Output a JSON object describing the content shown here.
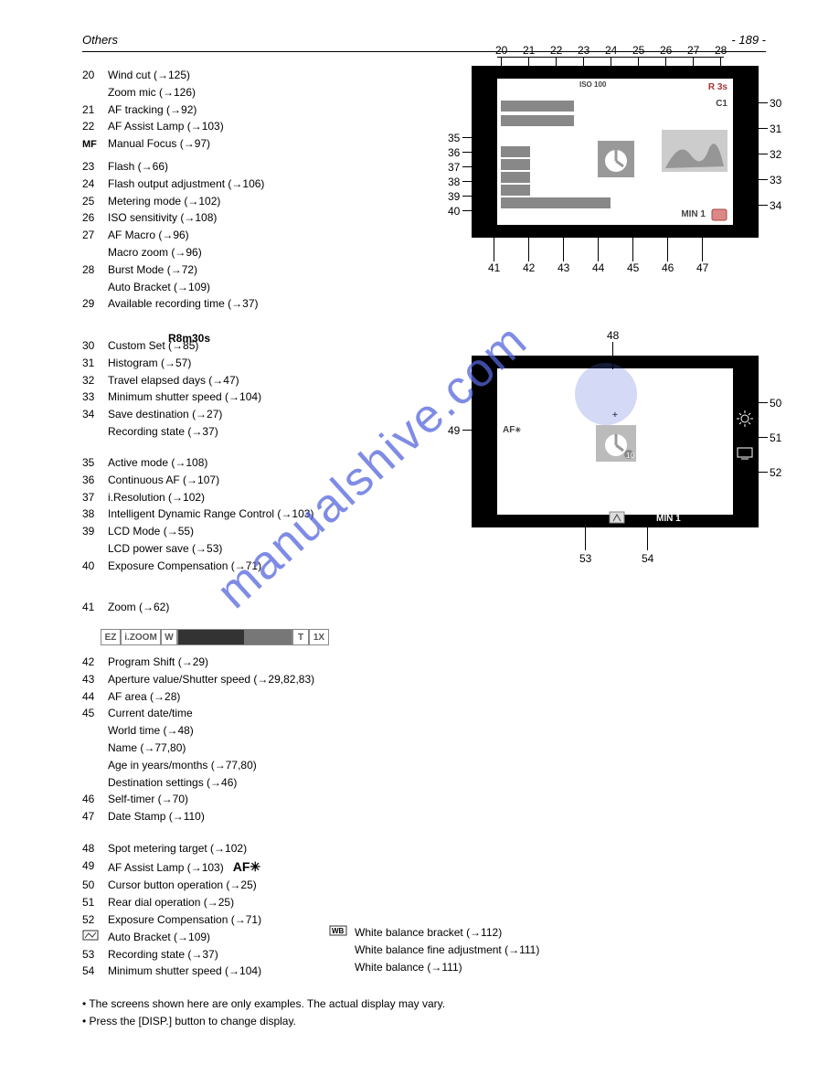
{
  "page_number_text": "- 189 -",
  "section_title": "Others",
  "numbers": {
    "top": [
      "20",
      "21",
      "22",
      "23",
      "24",
      "25",
      "26",
      "27",
      "28"
    ],
    "right": [
      "30",
      "31",
      "32",
      "33",
      "34"
    ],
    "left_vert": [
      "35",
      "36",
      "37",
      "38",
      "39",
      "40"
    ],
    "bottom": [
      "41",
      "42",
      "43",
      "44",
      "45",
      "46",
      "47"
    ]
  },
  "numbers_d2": {
    "top": [
      "48"
    ],
    "left": [
      "49"
    ],
    "right": [
      "50",
      "51",
      "52"
    ],
    "bottom": [
      "53",
      "54"
    ]
  },
  "screen1": {
    "iso": "100",
    "r3s": "R 3s",
    "c1": "C1",
    "min": "MIN 1"
  },
  "screen2": {
    "af": "AF",
    "min": "MIN 1"
  },
  "items_a": [
    {
      "i": "20",
      "t": "Wind cut (→125)",
      "pref": ""
    },
    {
      "i": "",
      "t": "Zoom mic (→126)",
      "pref": ""
    },
    {
      "i": "21",
      "t": "AF tracking (→92)",
      "pref": ""
    },
    {
      "i": "22",
      "t": "AF Assist Lamp (→103)",
      "pref": ""
    },
    {
      "i": "",
      "t": "Manual Focus (→97)",
      "pref": "",
      "mf": true
    }
  ],
  "items_b": [
    {
      "i": "23",
      "t": "Flash (→66)"
    },
    {
      "i": "24",
      "t": "Flash output adjustment (→106)"
    },
    {
      "i": "25",
      "t": "Metering mode (→102)"
    },
    {
      "i": "26",
      "t": "ISO sensitivity (→108)"
    },
    {
      "i": "27",
      "t": "AF Macro (→96)"
    },
    {
      "i": "",
      "t": "Macro zoom (→96)",
      "zoom_word": true
    },
    {
      "i": "28",
      "t": "Burst Mode (→72)"
    },
    {
      "i": "",
      "t": "Auto Bracket (→109)"
    },
    {
      "i": "29",
      "t": "Available recording time (→37)"
    },
    {
      "i": "",
      "t": " ",
      "r8:true": true
    }
  ],
  "r8_text": "R8m30s",
  "items_c": [
    {
      "i": "30",
      "t": "Custom Set (→85)"
    },
    {
      "i": "31",
      "t": "Histogram (→57)"
    },
    {
      "i": "32",
      "t": "Travel elapsed days (→47)"
    },
    {
      "i": "33",
      "t": "Minimum shutter speed (→104)"
    },
    {
      "i": "34",
      "t": "Save destination (→27)"
    },
    {
      "i": "",
      "t": "Recording state (→37)"
    }
  ],
  "items_d": [
    {
      "i": "35",
      "t": "Active mode (→108)"
    },
    {
      "i": "36",
      "t": "Continuous AF (→107)"
    },
    {
      "i": "37",
      "t": "i.Resolution (→102)"
    },
    {
      "i": "38",
      "t": "Intelligent Dynamic Range Control (→103)"
    },
    {
      "i": "39",
      "t": "LCD Mode (→55)"
    },
    {
      "i": "",
      "t": "LCD power save (→53)"
    },
    {
      "i": "40",
      "t": "Exposure Compensation (→71)"
    }
  ],
  "items_e": [
    {
      "i": "41",
      "t": "Zoom (→62)"
    }
  ],
  "zoom": {
    "ez": "EZ",
    "izoom": "i.ZOOM",
    "w": "W",
    "t": "T",
    "x": "1X"
  },
  "items_f": [
    {
      "i": "42",
      "t": "Program Shift (→29)"
    },
    {
      "i": "43",
      "t": "Aperture value/Shutter speed (→29,82,83)"
    },
    {
      "i": "44",
      "t": "AF area (→28)"
    },
    {
      "i": "45",
      "t": "Current date/time"
    },
    {
      "i": "",
      "t": "World time (→48)"
    },
    {
      "i": "",
      "t": "Name (→77,80)"
    },
    {
      "i": "",
      "t": "Age in years/months (→77,80)"
    },
    {
      "i": "",
      "t": "Destination settings (→46)"
    },
    {
      "i": "46",
      "t": "Self-timer (→70)"
    },
    {
      "i": "47",
      "t": "Date Stamp (→110)"
    }
  ],
  "items_g": [
    {
      "i": "48",
      "t": "Spot metering target (→102)"
    },
    {
      "i": "49",
      "t": "AF Assist Lamp (→103)",
      "af_star": true
    },
    {
      "i": "50",
      "t": "Cursor button operation (→25)"
    },
    {
      "i": "51",
      "t": "Rear dial operation (→25)"
    },
    {
      "i": "52",
      "t": "Exposure Compensation (→71)"
    },
    {
      "i": "",
      "t": "Auto Bracket (→109)",
      "icon": "bracket"
    },
    {
      "i": "53",
      "t": "Recording state (→37)"
    },
    {
      "i": "54",
      "t": "Minimum shutter speed (→104)"
    }
  ],
  "items_g2": [
    {
      "i": "",
      "t": "White balance bracket (→112)",
      "icon": "wb"
    },
    {
      "i": "",
      "t": "White balance fine adjustment (→111)"
    },
    {
      "i": "",
      "t": "White balance (→111)"
    }
  ],
  "footnotes": [
    "• The screens shown here are only examples. The actual display may vary.",
    "• Press the [DISP.] button to change display."
  ],
  "colors": {
    "accent": "#5566dd",
    "gray": "#888888",
    "dark": "#333333"
  }
}
